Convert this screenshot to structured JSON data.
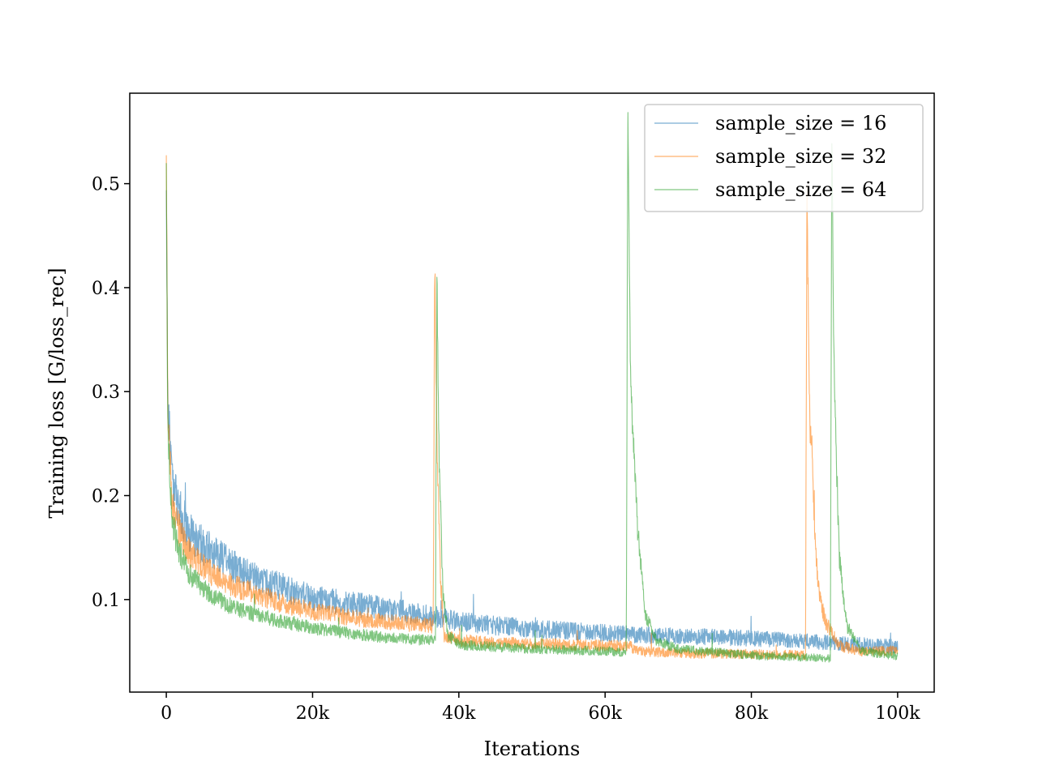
{
  "chart_data": {
    "type": "line",
    "title": "",
    "xlabel": "Iterations",
    "ylabel": "Training loss [G/loss_rec]",
    "xlim": [
      -5000,
      105000
    ],
    "ylim": [
      0.011,
      0.587
    ],
    "x_ticks": [
      0,
      20000,
      40000,
      60000,
      80000,
      100000
    ],
    "x_tick_labels": [
      "0",
      "20k",
      "40k",
      "60k",
      "80k",
      "100k"
    ],
    "y_ticks": [
      0.1,
      0.2,
      0.3,
      0.4,
      0.5
    ],
    "y_tick_labels": [
      "0.1",
      "0.2",
      "0.3",
      "0.4",
      "0.5"
    ],
    "grid": false,
    "legend_position": "top-right",
    "series": [
      {
        "name": "sample_size = 16",
        "color": "#1f77b4",
        "noise": 0.01,
        "x": [
          0,
          200,
          800,
          1500,
          3000,
          5000,
          8000,
          12000,
          16000,
          20000,
          25000,
          30000,
          35000,
          37000,
          40000,
          45000,
          50000,
          55000,
          60000,
          65000,
          70000,
          75000,
          80000,
          85000,
          90000,
          95000,
          100000
        ],
        "values": [
          0.5,
          0.29,
          0.21,
          0.19,
          0.165,
          0.15,
          0.135,
          0.12,
          0.11,
          0.1,
          0.095,
          0.09,
          0.085,
          0.082,
          0.078,
          0.074,
          0.071,
          0.069,
          0.067,
          0.065,
          0.064,
          0.063,
          0.062,
          0.06,
          0.058,
          0.056,
          0.054
        ]
      },
      {
        "name": "sample_size = 32",
        "color": "#ff7f0e",
        "noise": 0.008,
        "x": [
          0,
          200,
          800,
          1500,
          3000,
          5000,
          8000,
          12000,
          16000,
          20000,
          25000,
          30000,
          36500,
          36700,
          37000,
          37500,
          38000,
          40000,
          45000,
          50000,
          55000,
          60000,
          63500,
          64000,
          70000,
          80000,
          87400,
          87600,
          88000,
          89000,
          90000,
          92000,
          95000,
          100000
        ],
        "values": [
          0.53,
          0.28,
          0.19,
          0.17,
          0.145,
          0.13,
          0.115,
          0.105,
          0.095,
          0.088,
          0.082,
          0.078,
          0.074,
          0.43,
          0.25,
          0.12,
          0.065,
          0.06,
          0.058,
          0.057,
          0.056,
          0.055,
          0.055,
          0.05,
          0.048,
          0.047,
          0.046,
          0.48,
          0.27,
          0.12,
          0.08,
          0.055,
          0.05,
          0.05
        ]
      },
      {
        "name": "sample_size = 64",
        "color": "#2ca02c",
        "noise": 0.007,
        "x": [
          0,
          200,
          800,
          1500,
          3000,
          5000,
          8000,
          12000,
          16000,
          20000,
          25000,
          30000,
          36800,
          37000,
          37300,
          37800,
          38500,
          40000,
          50000,
          60000,
          62900,
          63100,
          63500,
          64500,
          65500,
          67000,
          70000,
          80000,
          90800,
          91000,
          91300,
          92000,
          93000,
          95000,
          100000
        ],
        "values": [
          0.52,
          0.26,
          0.175,
          0.15,
          0.125,
          0.11,
          0.095,
          0.085,
          0.078,
          0.072,
          0.067,
          0.063,
          0.06,
          0.41,
          0.24,
          0.11,
          0.065,
          0.056,
          0.052,
          0.05,
          0.049,
          0.57,
          0.3,
          0.16,
          0.085,
          0.06,
          0.052,
          0.046,
          0.043,
          0.55,
          0.32,
          0.14,
          0.075,
          0.05,
          0.045
        ]
      }
    ]
  }
}
